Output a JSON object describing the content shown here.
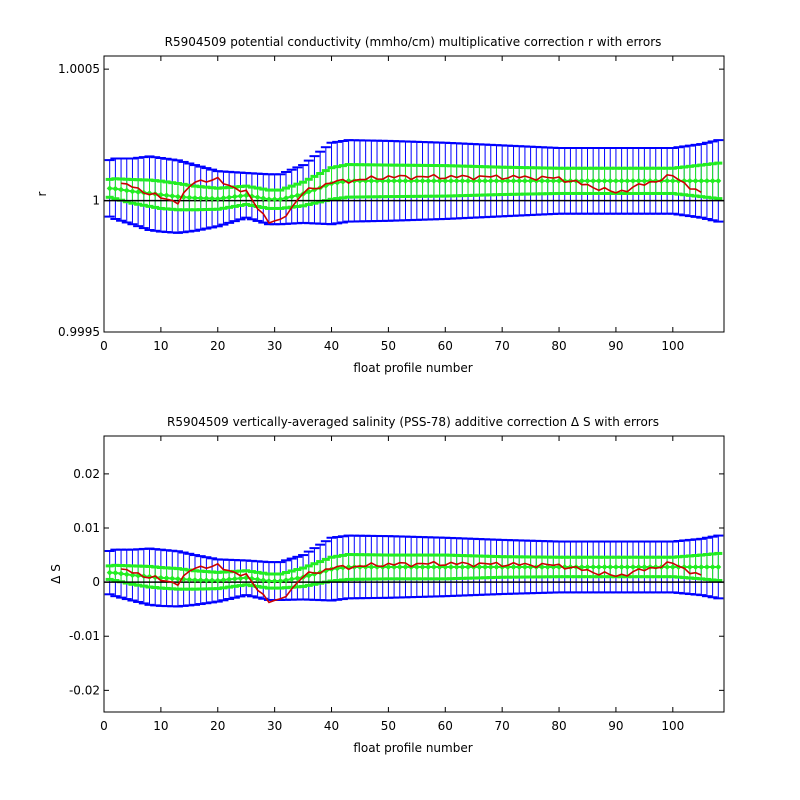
{
  "chart_data": [
    {
      "type": "line",
      "title": "R5904509 potential conductivity (mmho/cm) multiplicative correction r with errors",
      "xlabel": "float profile number",
      "ylabel": "r",
      "xlim": [
        0,
        109
      ],
      "ylim": [
        0.9995,
        1.00055
      ],
      "xticks": [
        "0",
        "10",
        "20",
        "30",
        "40",
        "50",
        "60",
        "70",
        "80",
        "90",
        "100"
      ],
      "yticks": [
        {
          "value": 1.0005,
          "label": "1.0005"
        },
        {
          "value": 1.0,
          "label": "1"
        },
        {
          "value": 0.9995,
          "label": "0.9995"
        }
      ],
      "reference_line": 1.0,
      "colors": {
        "estimate": "#cc0000",
        "fit": "#22ee22",
        "error_wide": "#0000ff",
        "error_narrow": "#22ee22",
        "reference": "#000000"
      },
      "x_knots": [
        0,
        2,
        5,
        8,
        10,
        13,
        16,
        20,
        25,
        29,
        31,
        35,
        40,
        43,
        50,
        60,
        70,
        80,
        90,
        100,
        105,
        109
      ],
      "estimate_knots": [
        null,
        1.000063,
        1.000055,
        1.000025,
        1.000012,
        0.999995,
        1.000075,
        1.000078,
        1.00003,
        0.99992,
        0.99992,
        1.00003,
        1.00007,
        1.000075,
        1.00009,
        1.00009,
        1.00009,
        1.000085,
        1.00003,
        1.000095,
        1.000025,
        null
      ],
      "fit_knots": [
        1.000048,
        1.000045,
        1.000035,
        1.000028,
        1.000022,
        1.000015,
        1.00001,
        1.000007,
        1.00002,
        1.000005,
        1.000005,
        1.000025,
        1.000065,
        1.000075,
        1.000075,
        1.000075,
        1.000075,
        1.000075,
        1.000075,
        1.000075,
        1.000075,
        1.000075
      ],
      "wide_error_knots": [
        0.0001,
        0.000115,
        0.000125,
        0.00014,
        0.00014,
        0.000138,
        0.000125,
        0.000105,
        8.5e-05,
        9.5e-05,
        9.5e-05,
        0.00011,
        0.000155,
        0.000155,
        0.000152,
        0.000145,
        0.000135,
        0.000125,
        0.000125,
        0.000125,
        0.00014,
        0.00016
      ],
      "narrow_error_knots": [
        3e-05,
        3.8e-05,
        4.5e-05,
        5e-05,
        5.2e-05,
        5e-05,
        4.5e-05,
        4e-05,
        3.5e-05,
        3.5e-05,
        3.5e-05,
        4.5e-05,
        6e-05,
        6.2e-05,
        6e-05,
        5.8e-05,
        5.2e-05,
        4.8e-05,
        4.8e-05,
        4.8e-05,
        6e-05,
        7e-05
      ]
    },
    {
      "type": "line",
      "title": "R5904509 vertically-averaged salinity (PSS-78) additive correction Δ S with errors",
      "xlabel": "float profile number",
      "ylabel": "Δ S",
      "xlim": [
        0,
        109
      ],
      "ylim": [
        -0.024,
        0.027
      ],
      "xticks": [
        "0",
        "10",
        "20",
        "30",
        "40",
        "50",
        "60",
        "70",
        "80",
        "90",
        "100"
      ],
      "yticks": [
        {
          "value": 0.02,
          "label": "0.02"
        },
        {
          "value": 0.01,
          "label": "0.01"
        },
        {
          "value": 0.0,
          "label": "0"
        },
        {
          "value": -0.01,
          "label": "-0.01"
        },
        {
          "value": -0.02,
          "label": "-0.02"
        }
      ],
      "reference_line": 0.0,
      "colors": {
        "estimate": "#cc0000",
        "fit": "#22ee22",
        "error_wide": "#0000ff",
        "error_narrow": "#22ee22",
        "reference": "#000000"
      },
      "x_knots": [
        0,
        2,
        5,
        8,
        10,
        13,
        16,
        20,
        25,
        29,
        31,
        35,
        40,
        43,
        50,
        60,
        70,
        80,
        90,
        100,
        105,
        109
      ],
      "estimate_knots": [
        null,
        0.0023,
        0.0019,
        0.0009,
        0.0004,
        -0.0002,
        0.0028,
        0.0029,
        0.0011,
        -0.0035,
        -0.0035,
        0.0011,
        0.0026,
        0.0028,
        0.0033,
        0.0034,
        0.0033,
        0.0031,
        0.0011,
        0.0035,
        0.001,
        null
      ],
      "fit_knots": [
        0.0018,
        0.0017,
        0.0013,
        0.001,
        0.0008,
        0.0006,
        0.0004,
        0.0003,
        0.0008,
        0.0002,
        0.0002,
        0.0009,
        0.0024,
        0.0028,
        0.0028,
        0.0028,
        0.0028,
        0.0028,
        0.0028,
        0.0028,
        0.0028,
        0.0028
      ],
      "wide_error_knots": [
        0.0037,
        0.0043,
        0.0047,
        0.0052,
        0.0052,
        0.0051,
        0.0046,
        0.0039,
        0.0032,
        0.0035,
        0.0035,
        0.0041,
        0.0058,
        0.0058,
        0.0057,
        0.0054,
        0.005,
        0.0047,
        0.0047,
        0.0047,
        0.0052,
        0.006
      ],
      "narrow_error_knots": [
        0.0011,
        0.0014,
        0.0017,
        0.0019,
        0.0019,
        0.0019,
        0.0017,
        0.0015,
        0.0013,
        0.0013,
        0.0013,
        0.0017,
        0.0022,
        0.0023,
        0.0022,
        0.0022,
        0.0019,
        0.0018,
        0.0018,
        0.0018,
        0.0022,
        0.0026
      ]
    }
  ]
}
